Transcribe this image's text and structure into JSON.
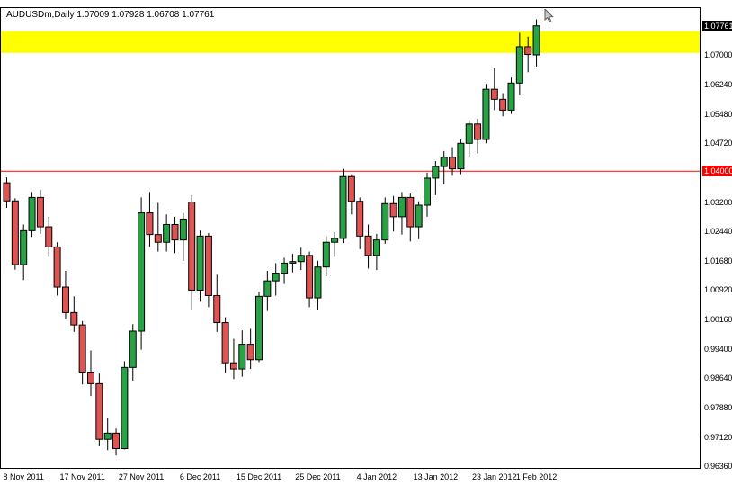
{
  "header": {
    "title_line": "AUDUSDm,Daily 1.07009 1.07928 1.06708 1.07761"
  },
  "colors": {
    "bull_fill": "#27a346",
    "bear_fill": "#dd5454",
    "outline": "#000000",
    "band_fill": "#ffff00",
    "hline": "#ff0000",
    "hline_tag_bg": "#ff0000",
    "price_tag_bg": "#000000",
    "tag_text": "#ffffff",
    "axis_text": "#000000"
  },
  "chart_data": {
    "type": "candlestick",
    "symbol": "AUDUSDm",
    "timeframe": "Daily",
    "last_ohlc": {
      "open": 1.07009,
      "high": 1.07928,
      "low": 1.06708,
      "close": 1.07761
    },
    "y_range": {
      "top": 1.0822,
      "bottom": 0.9632
    },
    "y_ticks": [
      "1.07000",
      "1.06240",
      "1.05480",
      "1.04720",
      "1.03200",
      "1.02440",
      "1.01680",
      "1.00920",
      "1.00160",
      "0.99400",
      "0.98640",
      "0.97880",
      "0.97120",
      "0.96360"
    ],
    "current_price_tag": "1.07761",
    "horizontal_line": {
      "value": 1.04,
      "label": "1.04000"
    },
    "highlight_band": {
      "from": 1.0706,
      "to": 1.0762
    },
    "x_ticks": [
      {
        "label": "8 Nov 2011",
        "index": 2
      },
      {
        "label": "17 Nov 2011",
        "index": 9
      },
      {
        "label": "27 Nov 2011",
        "index": 16
      },
      {
        "label": "6 Dec 2011",
        "index": 23
      },
      {
        "label": "15 Dec 2011",
        "index": 30
      },
      {
        "label": "25 Dec 2011",
        "index": 37
      },
      {
        "label": "4 Jan 2012",
        "index": 44
      },
      {
        "label": "13 Jan 2012",
        "index": 51
      },
      {
        "label": "23 Jan 2012",
        "index": 58
      },
      {
        "label": "1 Feb 2012",
        "index": 63
      }
    ],
    "candles": [
      {
        "d": "8 Nov",
        "o": 1.037,
        "h": 1.0384,
        "l": 1.0305,
        "c": 1.0323
      },
      {
        "d": "9 Nov",
        "o": 1.0323,
        "h": 1.033,
        "l": 1.0145,
        "c": 1.0158
      },
      {
        "d": "10 Nov",
        "o": 1.0158,
        "h": 1.0262,
        "l": 1.0118,
        "c": 1.0246
      },
      {
        "d": "11 Nov",
        "o": 1.0246,
        "h": 1.0346,
        "l": 1.023,
        "c": 1.0332
      },
      {
        "d": "14 Nov",
        "o": 1.0332,
        "h": 1.0352,
        "l": 1.0238,
        "c": 1.0256
      },
      {
        "d": "15 Nov",
        "o": 1.0256,
        "h": 1.0282,
        "l": 1.0178,
        "c": 1.0204
      },
      {
        "d": "16 Nov",
        "o": 1.0204,
        "h": 1.0216,
        "l": 1.0078,
        "c": 1.01
      },
      {
        "d": "17 Nov",
        "o": 1.01,
        "h": 1.0142,
        "l": 1.0016,
        "c": 1.0034
      },
      {
        "d": "18 Nov",
        "o": 1.0034,
        "h": 1.0076,
        "l": 0.9984,
        "c": 1.0002
      },
      {
        "d": "21 Nov",
        "o": 1.0002,
        "h": 1.0012,
        "l": 0.9848,
        "c": 0.988
      },
      {
        "d": "22 Nov",
        "o": 0.988,
        "h": 0.9936,
        "l": 0.9818,
        "c": 0.985
      },
      {
        "d": "23 Nov",
        "o": 0.985,
        "h": 0.9876,
        "l": 0.9688,
        "c": 0.9706
      },
      {
        "d": "24 Nov",
        "o": 0.9706,
        "h": 0.9762,
        "l": 0.9678,
        "c": 0.9722
      },
      {
        "d": "25 Nov",
        "o": 0.9722,
        "h": 0.9734,
        "l": 0.9664,
        "c": 0.9682
      },
      {
        "d": "28 Nov",
        "o": 0.9682,
        "h": 0.9908,
        "l": 0.968,
        "c": 0.9892
      },
      {
        "d": "29 Nov",
        "o": 0.9892,
        "h": 1.0004,
        "l": 0.9858,
        "c": 0.9986
      },
      {
        "d": "30 Nov",
        "o": 0.9986,
        "h": 1.0332,
        "l": 0.9938,
        "c": 1.0292
      },
      {
        "d": "1 Dec",
        "o": 1.0292,
        "h": 1.0346,
        "l": 1.0204,
        "c": 1.0236
      },
      {
        "d": "2 Dec",
        "o": 1.0236,
        "h": 1.0318,
        "l": 1.0192,
        "c": 1.0216
      },
      {
        "d": "5 Dec",
        "o": 1.0216,
        "h": 1.0288,
        "l": 1.0192,
        "c": 1.0262
      },
      {
        "d": "6 Dec",
        "o": 1.0262,
        "h": 1.0282,
        "l": 1.0188,
        "c": 1.0222
      },
      {
        "d": "7 Dec",
        "o": 1.0222,
        "h": 1.0292,
        "l": 1.0168,
        "c": 1.0276
      },
      {
        "d": "8 Dec",
        "o": 1.032,
        "h": 1.0338,
        "l": 1.0042,
        "c": 1.0092
      },
      {
        "d": "9 Dec",
        "o": 1.0092,
        "h": 1.0246,
        "l": 1.0062,
        "c": 1.0232
      },
      {
        "d": "12 Dec",
        "o": 1.0232,
        "h": 1.024,
        "l": 1.0048,
        "c": 1.0078
      },
      {
        "d": "13 Dec",
        "o": 1.0078,
        "h": 1.0132,
        "l": 0.9984,
        "c": 1.0008
      },
      {
        "d": "14 Dec",
        "o": 1.0008,
        "h": 1.0022,
        "l": 0.9878,
        "c": 0.9904
      },
      {
        "d": "15 Dec",
        "o": 0.9904,
        "h": 0.9966,
        "l": 0.9862,
        "c": 0.9888
      },
      {
        "d": "16 Dec",
        "o": 0.9888,
        "h": 0.9988,
        "l": 0.9868,
        "c": 0.9952
      },
      {
        "d": "19 Dec",
        "o": 0.9952,
        "h": 0.9992,
        "l": 0.9888,
        "c": 0.9912
      },
      {
        "d": "20 Dec",
        "o": 0.9912,
        "h": 1.0088,
        "l": 0.9906,
        "c": 1.0076
      },
      {
        "d": "21 Dec",
        "o": 1.0076,
        "h": 1.0142,
        "l": 1.0038,
        "c": 1.0116
      },
      {
        "d": "22 Dec",
        "o": 1.0116,
        "h": 1.0162,
        "l": 1.0078,
        "c": 1.0136
      },
      {
        "d": "23 Dec",
        "o": 1.0136,
        "h": 1.0176,
        "l": 1.0108,
        "c": 1.0162
      },
      {
        "d": "26 Dec",
        "o": 1.0162,
        "h": 1.0186,
        "l": 1.0138,
        "c": 1.0166
      },
      {
        "d": "27 Dec",
        "o": 1.0166,
        "h": 1.0202,
        "l": 1.0144,
        "c": 1.0182
      },
      {
        "d": "28 Dec",
        "o": 1.0182,
        "h": 1.0192,
        "l": 1.0048,
        "c": 1.0072
      },
      {
        "d": "29 Dec",
        "o": 1.0072,
        "h": 1.0168,
        "l": 1.0042,
        "c": 1.0152
      },
      {
        "d": "30 Dec",
        "o": 1.0152,
        "h": 1.0232,
        "l": 1.0128,
        "c": 1.0216
      },
      {
        "d": "2 Jan",
        "o": 1.0216,
        "h": 1.0242,
        "l": 1.0178,
        "c": 1.0226
      },
      {
        "d": "3 Jan",
        "o": 1.0226,
        "h": 1.0406,
        "l": 1.0214,
        "c": 1.0386
      },
      {
        "d": "4 Jan",
        "o": 1.0386,
        "h": 1.0392,
        "l": 1.0288,
        "c": 1.0322
      },
      {
        "d": "5 Jan",
        "o": 1.0322,
        "h": 1.0332,
        "l": 1.0198,
        "c": 1.0232
      },
      {
        "d": "6 Jan",
        "o": 1.0232,
        "h": 1.0262,
        "l": 1.0148,
        "c": 1.0182
      },
      {
        "d": "9 Jan",
        "o": 1.0182,
        "h": 1.0238,
        "l": 1.0144,
        "c": 1.0222
      },
      {
        "d": "10 Jan",
        "o": 1.0222,
        "h": 1.0332,
        "l": 1.0212,
        "c": 1.0316
      },
      {
        "d": "11 Jan",
        "o": 1.0316,
        "h": 1.0336,
        "l": 1.0244,
        "c": 1.0282
      },
      {
        "d": "12 Jan",
        "o": 1.0282,
        "h": 1.0346,
        "l": 1.0236,
        "c": 1.0332
      },
      {
        "d": "13 Jan",
        "o": 1.0332,
        "h": 1.0342,
        "l": 1.0218,
        "c": 1.0256
      },
      {
        "d": "16 Jan",
        "o": 1.0256,
        "h": 1.0322,
        "l": 1.0224,
        "c": 1.0312
      },
      {
        "d": "17 Jan",
        "o": 1.0312,
        "h": 1.0396,
        "l": 1.0282,
        "c": 1.0382
      },
      {
        "d": "18 Jan",
        "o": 1.0382,
        "h": 1.0426,
        "l": 1.0338,
        "c": 1.0412
      },
      {
        "d": "19 Jan",
        "o": 1.0412,
        "h": 1.0452,
        "l": 1.0366,
        "c": 1.0436
      },
      {
        "d": "20 Jan",
        "o": 1.0436,
        "h": 1.0462,
        "l": 1.0388,
        "c": 1.0406
      },
      {
        "d": "23 Jan",
        "o": 1.0406,
        "h": 1.0482,
        "l": 1.0392,
        "c": 1.0472
      },
      {
        "d": "24 Jan",
        "o": 1.0472,
        "h": 1.0532,
        "l": 1.0438,
        "c": 1.0522
      },
      {
        "d": "25 Jan",
        "o": 1.0522,
        "h": 1.0536,
        "l": 1.0446,
        "c": 1.0482
      },
      {
        "d": "26 Jan",
        "o": 1.0482,
        "h": 1.0626,
        "l": 1.0472,
        "c": 1.0612
      },
      {
        "d": "27 Jan",
        "o": 1.0612,
        "h": 1.0666,
        "l": 1.0558,
        "c": 1.0586
      },
      {
        "d": "30 Jan",
        "o": 1.0586,
        "h": 1.0602,
        "l": 1.0542,
        "c": 1.0558
      },
      {
        "d": "31 Jan",
        "o": 1.0558,
        "h": 1.0642,
        "l": 1.0548,
        "c": 1.0628
      },
      {
        "d": "1 Feb",
        "o": 1.0628,
        "h": 1.0758,
        "l": 1.0596,
        "c": 1.0722
      },
      {
        "d": "2 Feb",
        "o": 1.0722,
        "h": 1.0748,
        "l": 1.0656,
        "c": 1.0702
      },
      {
        "d": "3 Feb",
        "o": 1.07009,
        "h": 1.07928,
        "l": 1.06708,
        "c": 1.07761
      }
    ]
  }
}
